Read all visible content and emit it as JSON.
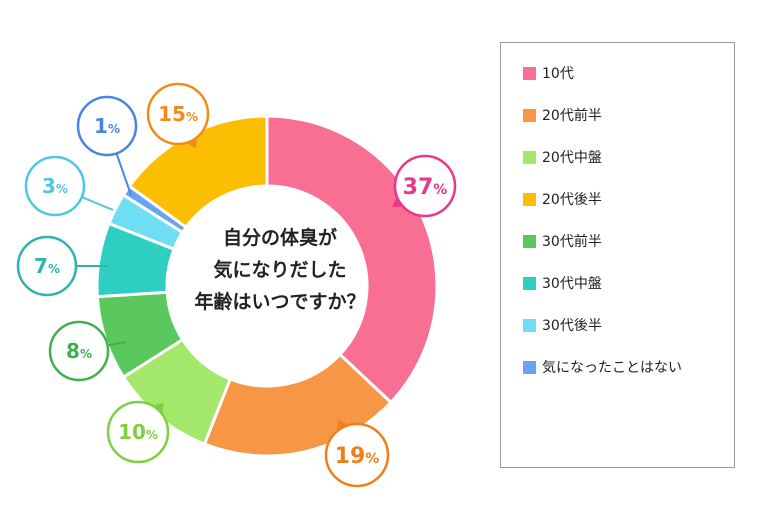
{
  "chart_data": {
    "type": "pie",
    "title": "自分の体臭が気になりだした年齢はいつですか？",
    "title_lines": [
      "自分の体臭が",
      "気になりだした",
      "年齢はいつですか？"
    ],
    "categories": [
      "10代",
      "20代前半",
      "20代中盤",
      "20代後半",
      "30代前半",
      "30代中盤",
      "30代後半",
      "気になったことはない"
    ],
    "values": [
      37,
      19,
      10,
      15,
      8,
      7,
      3,
      1
    ],
    "value_labels": [
      "37%",
      "19%",
      "10%",
      "15%",
      "8%",
      "7%",
      "3%",
      "1%"
    ],
    "colors": [
      "#f96e93",
      "#f79746",
      "#a3e86a",
      "#fcbe02",
      "#5ac85c",
      "#2ecfc2",
      "#6edef5",
      "#6aa4ee"
    ],
    "label_colors": [
      "#e8388a",
      "#ef7f1a",
      "#7fcf3e",
      "#f08c1a",
      "#3fb04f",
      "#2eb3b0",
      "#4fc6e4",
      "#4a86e0"
    ],
    "slice_order": [
      0,
      1,
      2,
      4,
      5,
      6,
      7,
      3
    ],
    "legend_position": "right"
  }
}
